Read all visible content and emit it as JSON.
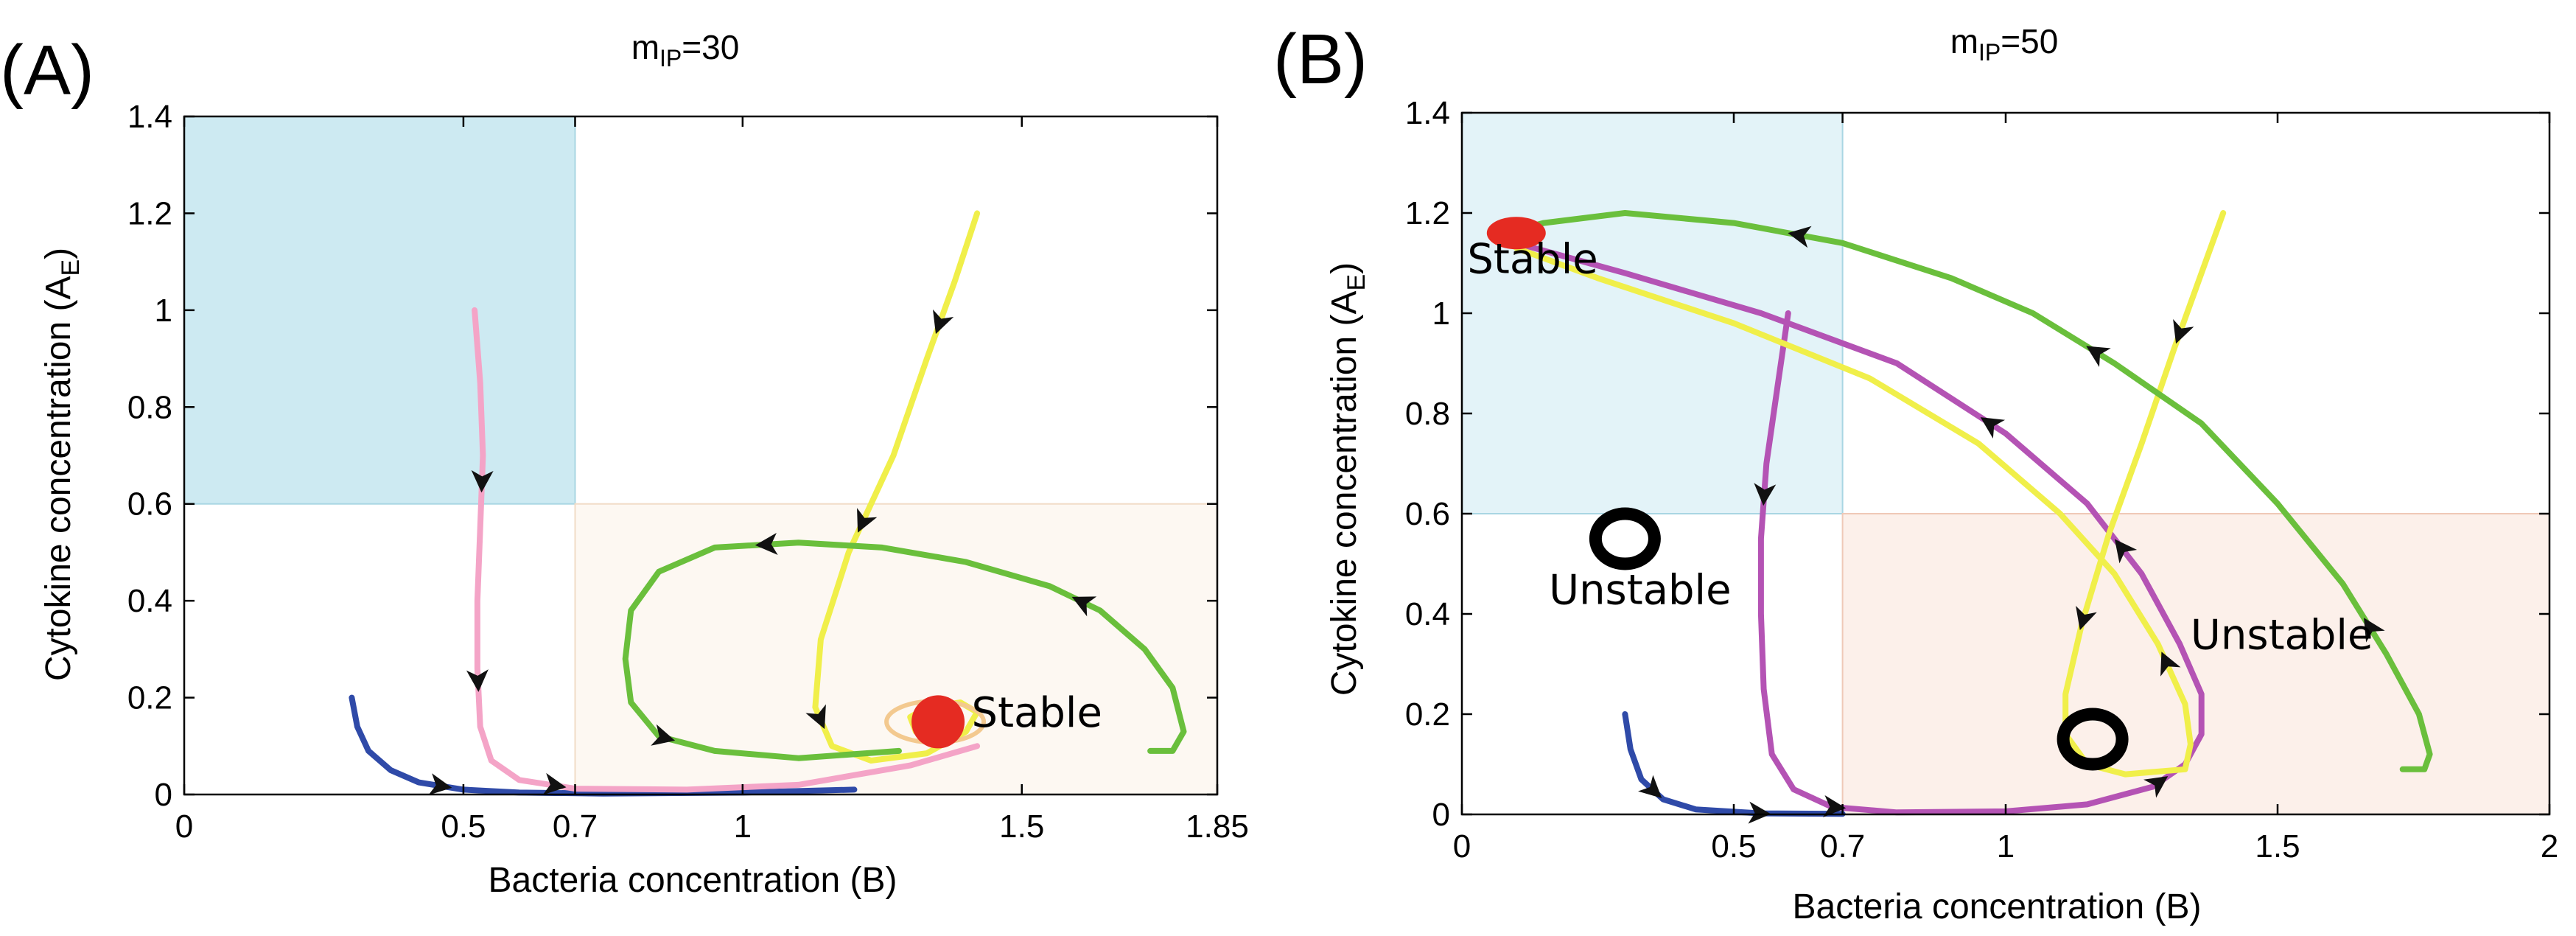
{
  "chart_data": [
    {
      "type": "line",
      "panel_label": "(A)",
      "title_main": "m",
      "title_sub": "IP",
      "title_rest": "=30",
      "xlabel": "Bacteria concentration (B)",
      "ylabel_main": "Cytokine concentration (A",
      "ylabel_sub": "E",
      "ylabel_end": ")",
      "xlim": [
        0,
        1.85
      ],
      "ylim": [
        0,
        1.4
      ],
      "xticks": [
        {
          "value": 0,
          "label": "0"
        },
        {
          "value": 0.5,
          "label": "0.5"
        },
        {
          "value": 0.7,
          "label": "0.7"
        },
        {
          "value": 1,
          "label": "1"
        },
        {
          "value": 1.5,
          "label": "1.5"
        },
        {
          "value": 1.85,
          "label": "1.85"
        }
      ],
      "yticks": [
        {
          "value": 0,
          "label": "0"
        },
        {
          "value": 0.2,
          "label": "0.2"
        },
        {
          "value": 0.4,
          "label": "0.4"
        },
        {
          "value": 0.6,
          "label": "0.6"
        },
        {
          "value": 0.8,
          "label": "0.8"
        },
        {
          "value": 1,
          "label": "1"
        },
        {
          "value": 1.2,
          "label": "1.2"
        },
        {
          "value": 1.4,
          "label": "1.4"
        }
      ],
      "regions": [
        {
          "x": [
            0,
            0.7
          ],
          "y": [
            0.6,
            1.4
          ],
          "color": "#cdeaf2",
          "stroke": "#a9d6e3"
        },
        {
          "x": [
            0.7,
            1.85
          ],
          "y": [
            0,
            0.6
          ],
          "color": "#fdf8f2",
          "stroke": "#f1dcc7"
        }
      ],
      "trajectories": [
        {
          "color": "#2f4aa8",
          "points": [
            [
              0.3,
              0.2
            ],
            [
              0.31,
              0.14
            ],
            [
              0.33,
              0.09
            ],
            [
              0.37,
              0.05
            ],
            [
              0.42,
              0.025
            ],
            [
              0.5,
              0.01
            ],
            [
              0.6,
              0.004
            ],
            [
              0.75,
              0.002
            ],
            [
              1.0,
              0.004
            ],
            [
              1.2,
              0.01
            ]
          ],
          "arrows": [
            0.25
          ]
        },
        {
          "color": "#f4a4c7",
          "points": [
            [
              0.52,
              1.0
            ],
            [
              0.53,
              0.85
            ],
            [
              0.535,
              0.7
            ],
            [
              0.53,
              0.55
            ],
            [
              0.525,
              0.4
            ],
            [
              0.525,
              0.26
            ],
            [
              0.53,
              0.14
            ],
            [
              0.55,
              0.07
            ],
            [
              0.6,
              0.03
            ],
            [
              0.7,
              0.012
            ],
            [
              0.9,
              0.01
            ],
            [
              1.1,
              0.02
            ],
            [
              1.3,
              0.06
            ],
            [
              1.42,
              0.1
            ]
          ],
          "arrows": [
            0.18,
            0.39,
            0.55
          ]
        },
        {
          "color": "#f0ef4a",
          "points": [
            [
              1.42,
              1.2
            ],
            [
              1.38,
              1.06
            ],
            [
              1.33,
              0.9
            ],
            [
              1.27,
              0.7
            ],
            [
              1.19,
              0.5
            ],
            [
              1.14,
              0.32
            ],
            [
              1.13,
              0.18
            ],
            [
              1.16,
              0.1
            ],
            [
              1.23,
              0.07
            ],
            [
              1.33,
              0.085
            ],
            [
              1.4,
              0.13
            ],
            [
              1.42,
              0.17
            ],
            [
              1.39,
              0.19
            ],
            [
              1.33,
              0.18
            ],
            [
              1.3,
              0.16
            ],
            [
              1.31,
              0.13
            ],
            [
              1.35,
              0.12
            ],
            [
              1.38,
              0.14
            ],
            [
              1.37,
              0.165
            ],
            [
              1.34,
              0.16
            ]
          ],
          "arrows": [
            0.13,
            0.37,
            0.6
          ]
        },
        {
          "color": "#6abf3c",
          "points": [
            [
              1.73,
              0.09
            ],
            [
              1.77,
              0.09
            ],
            [
              1.79,
              0.13
            ],
            [
              1.77,
              0.22
            ],
            [
              1.72,
              0.3
            ],
            [
              1.64,
              0.38
            ],
            [
              1.55,
              0.43
            ],
            [
              1.4,
              0.48
            ],
            [
              1.25,
              0.51
            ],
            [
              1.1,
              0.52
            ],
            [
              0.95,
              0.51
            ],
            [
              0.85,
              0.46
            ],
            [
              0.8,
              0.38
            ],
            [
              0.79,
              0.28
            ],
            [
              0.8,
              0.19
            ],
            [
              0.85,
              0.12
            ],
            [
              0.95,
              0.09
            ],
            [
              1.1,
              0.075
            ],
            [
              1.28,
              0.09
            ]
          ],
          "arrows": [
            0.2,
            0.5,
            0.78
          ]
        }
      ],
      "points": [
        {
          "x": 1.35,
          "y": 0.15,
          "kind": "stable",
          "label": "Stable",
          "label_x": 1.41,
          "label_y": 0.14
        }
      ]
    },
    {
      "type": "line",
      "panel_label": "(B)",
      "title_main": "m",
      "title_sub": "IP",
      "title_rest": "=50",
      "xlabel": "Bacteria concentration (B)",
      "ylabel_main": "Cytokine concentration (A",
      "ylabel_sub": "E",
      "ylabel_end": ")",
      "xlim": [
        0,
        2
      ],
      "ylim": [
        0,
        1.4
      ],
      "xticks": [
        {
          "value": 0,
          "label": "0"
        },
        {
          "value": 0.5,
          "label": "0.5"
        },
        {
          "value": 0.7,
          "label": "0.7"
        },
        {
          "value": 1,
          "label": "1"
        },
        {
          "value": 1.5,
          "label": "1.5"
        },
        {
          "value": 2,
          "label": "2"
        }
      ],
      "yticks": [
        {
          "value": 0,
          "label": "0"
        },
        {
          "value": 0.2,
          "label": "0.2"
        },
        {
          "value": 0.4,
          "label": "0.4"
        },
        {
          "value": 0.6,
          "label": "0.6"
        },
        {
          "value": 0.8,
          "label": "0.8"
        },
        {
          "value": 1,
          "label": "1"
        },
        {
          "value": 1.2,
          "label": "1.2"
        },
        {
          "value": 1.4,
          "label": "1.4"
        }
      ],
      "regions": [
        {
          "x": [
            0,
            0.7
          ],
          "y": [
            0.6,
            1.4
          ],
          "color": "#e3f3f8",
          "stroke": "#a9d6e3"
        },
        {
          "x": [
            0.7,
            2
          ],
          "y": [
            0,
            0.6
          ],
          "color": "#fcf0ea",
          "stroke": "#efc9b7"
        }
      ],
      "trajectories": [
        {
          "color": "#2f4aa8",
          "points": [
            [
              0.3,
              0.2
            ],
            [
              0.31,
              0.13
            ],
            [
              0.33,
              0.07
            ],
            [
              0.37,
              0.03
            ],
            [
              0.43,
              0.01
            ],
            [
              0.55,
              0.002
            ],
            [
              0.7,
              0.001
            ]
          ],
          "arrows": [
            0.3,
            0.7
          ]
        },
        {
          "color": "#b453b4",
          "points": [
            [
              0.6,
              1.0
            ],
            [
              0.58,
              0.85
            ],
            [
              0.56,
              0.7
            ],
            [
              0.55,
              0.55
            ],
            [
              0.55,
              0.4
            ],
            [
              0.555,
              0.25
            ],
            [
              0.57,
              0.12
            ],
            [
              0.61,
              0.05
            ],
            [
              0.68,
              0.015
            ],
            [
              0.8,
              0.004
            ],
            [
              1.0,
              0.006
            ],
            [
              1.15,
              0.02
            ],
            [
              1.27,
              0.055
            ],
            [
              1.33,
              0.1
            ],
            [
              1.36,
              0.16
            ],
            [
              1.36,
              0.24
            ],
            [
              1.32,
              0.34
            ],
            [
              1.25,
              0.48
            ],
            [
              1.15,
              0.62
            ],
            [
              1.0,
              0.76
            ],
            [
              0.8,
              0.9
            ],
            [
              0.55,
              1.0
            ],
            [
              0.3,
              1.08
            ],
            [
              0.1,
              1.14
            ]
          ],
          "arrows": [
            0.1,
            0.29,
            0.47,
            0.62,
            0.72
          ]
        },
        {
          "color": "#f0ef4a",
          "points": [
            [
              1.4,
              1.2
            ],
            [
              1.36,
              1.08
            ],
            [
              1.31,
              0.93
            ],
            [
              1.25,
              0.74
            ],
            [
              1.19,
              0.56
            ],
            [
              1.14,
              0.38
            ],
            [
              1.11,
              0.24
            ],
            [
              1.11,
              0.16
            ],
            [
              1.15,
              0.1
            ],
            [
              1.22,
              0.08
            ],
            [
              1.33,
              0.09
            ],
            [
              1.34,
              0.14
            ],
            [
              1.33,
              0.22
            ],
            [
              1.28,
              0.34
            ],
            [
              1.2,
              0.48
            ],
            [
              1.1,
              0.6
            ],
            [
              0.95,
              0.74
            ],
            [
              0.75,
              0.87
            ],
            [
              0.5,
              0.98
            ],
            [
              0.25,
              1.07
            ],
            [
              0.1,
              1.13
            ]
          ],
          "arrows": [
            0.08,
            0.27,
            0.5
          ]
        },
        {
          "color": "#6abf3c",
          "points": [
            [
              1.73,
              0.09
            ],
            [
              1.77,
              0.09
            ],
            [
              1.78,
              0.12
            ],
            [
              1.76,
              0.2
            ],
            [
              1.7,
              0.32
            ],
            [
              1.62,
              0.46
            ],
            [
              1.5,
              0.62
            ],
            [
              1.36,
              0.78
            ],
            [
              1.2,
              0.9
            ],
            [
              1.05,
              1.0
            ],
            [
              0.9,
              1.07
            ],
            [
              0.7,
              1.14
            ],
            [
              0.5,
              1.18
            ],
            [
              0.3,
              1.2
            ],
            [
              0.15,
              1.18
            ],
            [
              0.08,
              1.16
            ]
          ],
          "arrows": [
            0.15,
            0.48,
            0.75
          ]
        }
      ],
      "points": [
        {
          "x": 0.1,
          "y": 1.16,
          "kind": "stable",
          "label": "Stable",
          "label_x": 0.01,
          "label_y": 1.08
        },
        {
          "x": 0.3,
          "y": 0.55,
          "kind": "unstable",
          "label": "Unstable",
          "label_x": 0.16,
          "label_y": 0.42
        },
        {
          "x": 1.16,
          "y": 0.15,
          "kind": "unstable",
          "label": "Unstable",
          "label_x": 1.34,
          "label_y": 0.33
        }
      ]
    }
  ]
}
